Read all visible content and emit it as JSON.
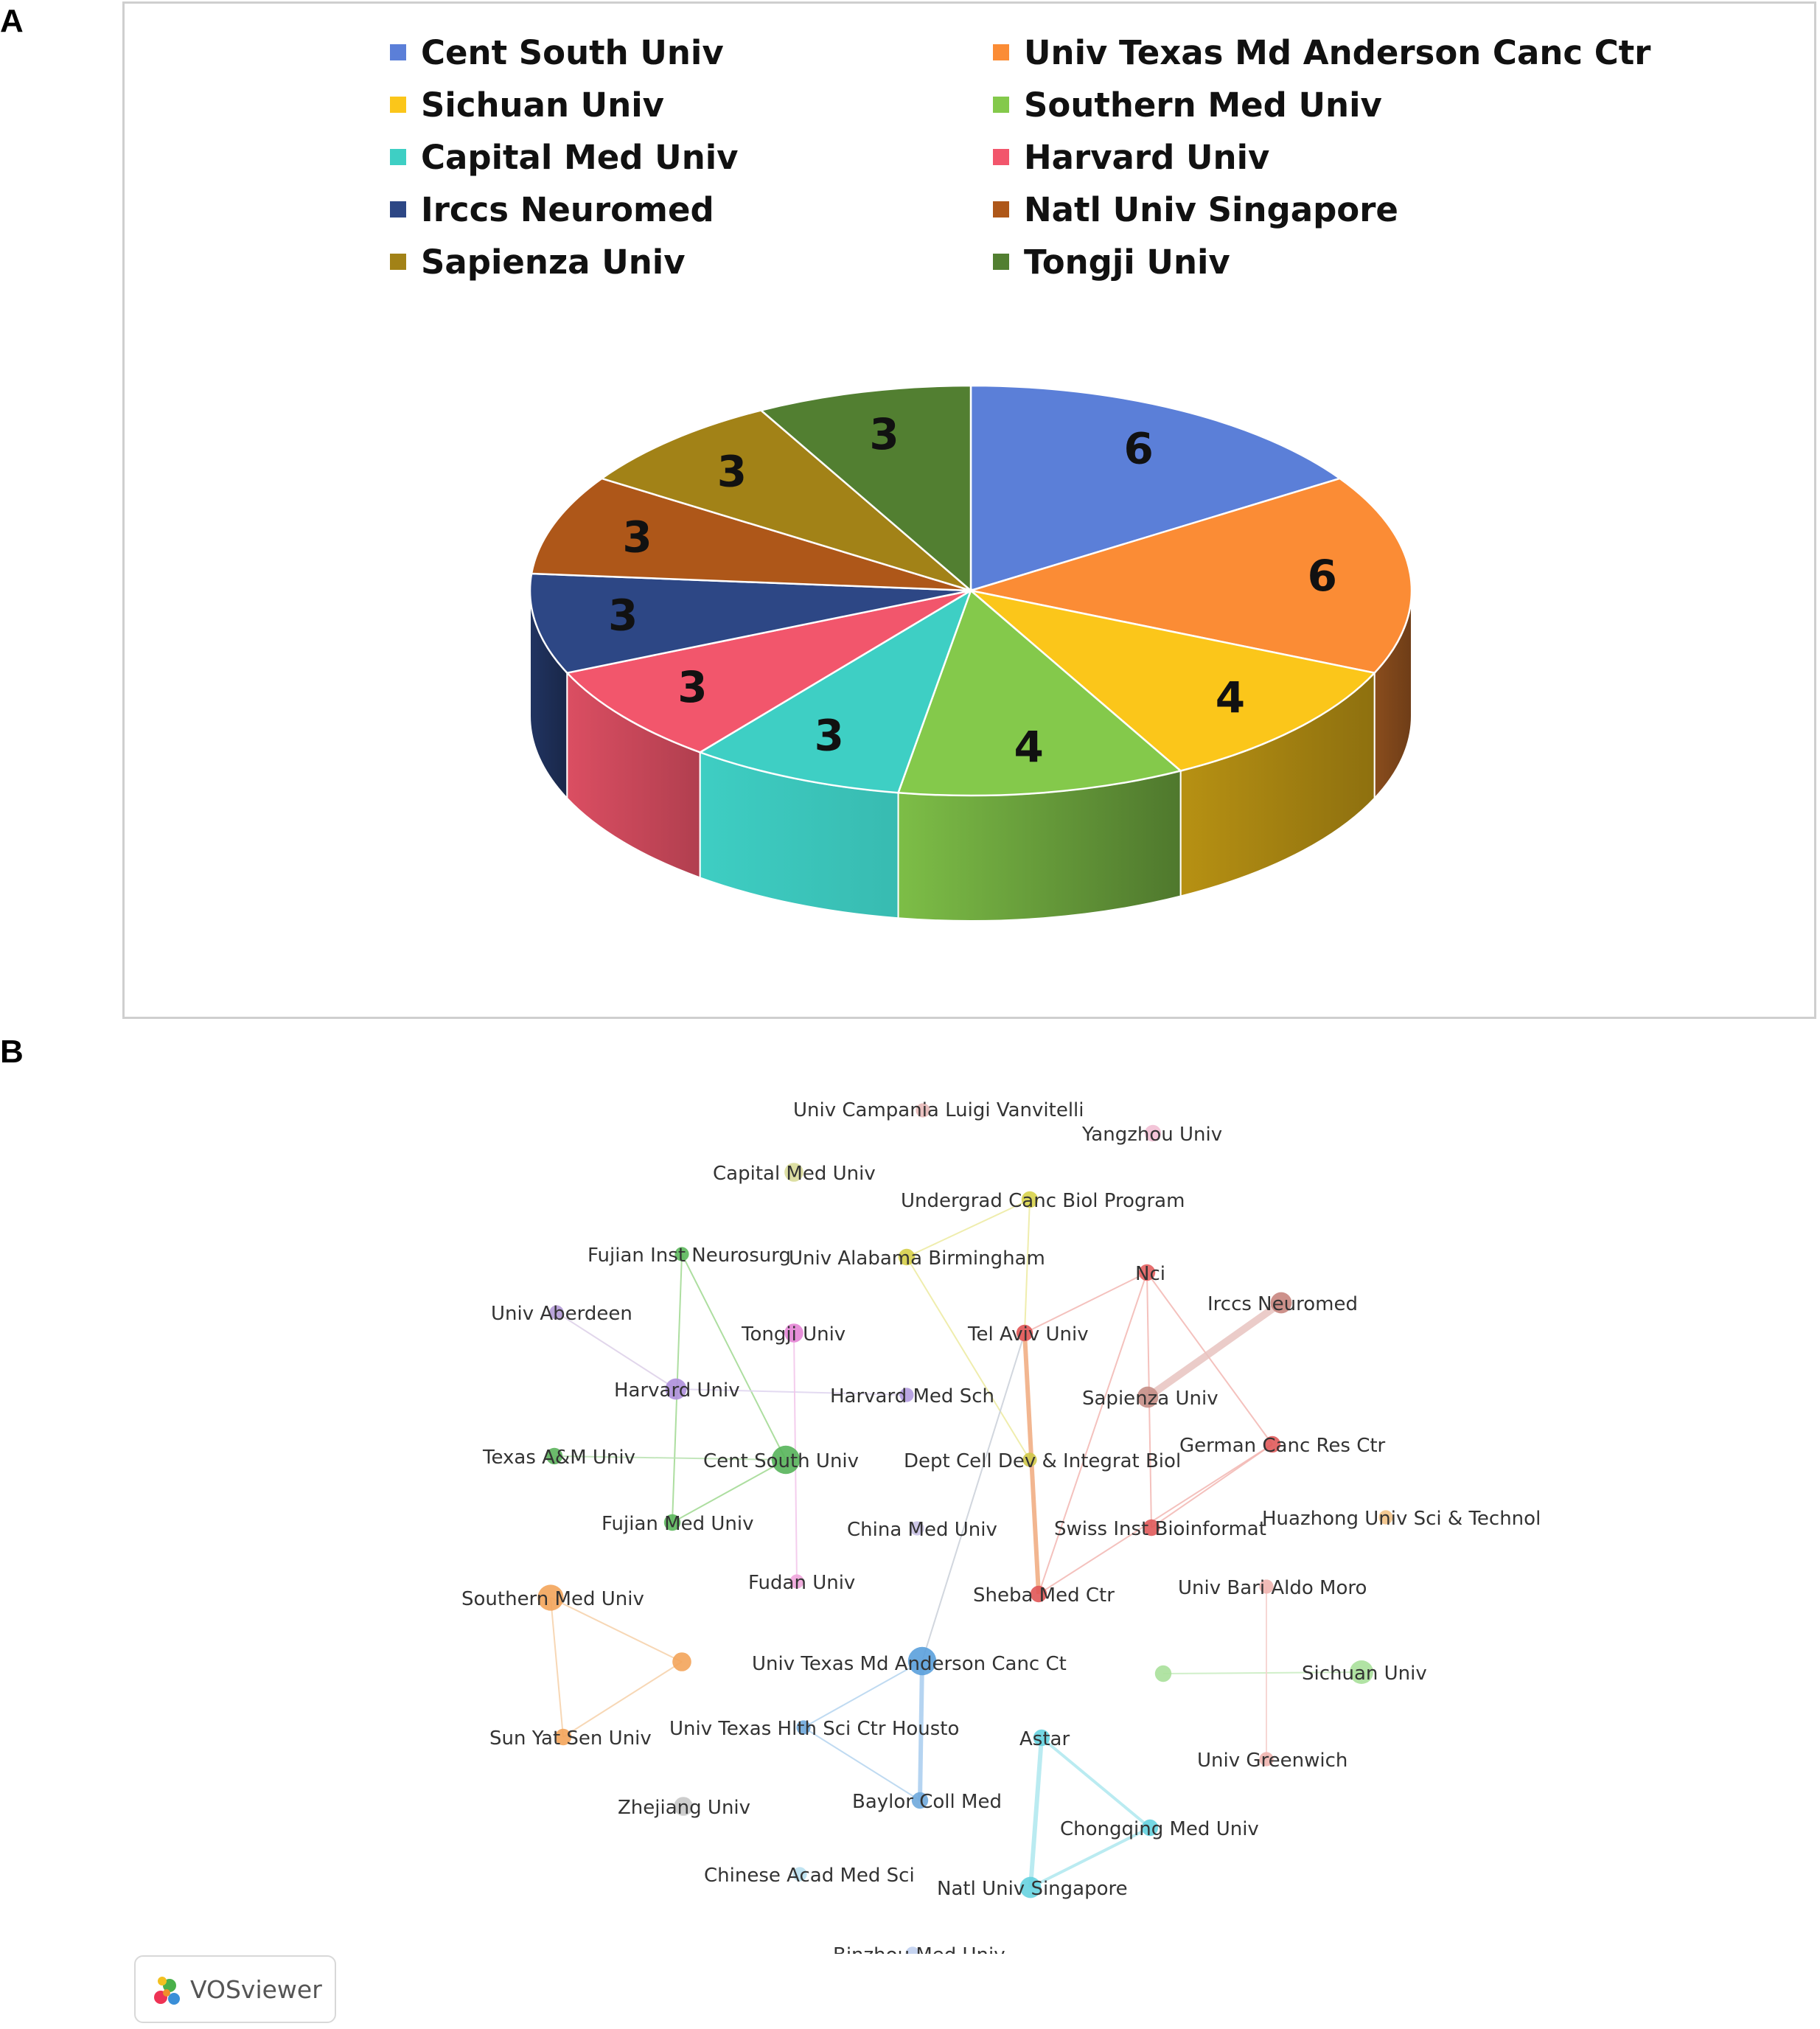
{
  "panel_labels": {
    "a": "A",
    "b": "B"
  },
  "chart_data": [
    {
      "type": "pie",
      "style": "3d",
      "legend_position": "top",
      "categories": [
        "Cent South Univ",
        "Univ Texas Md Anderson Canc Ctr",
        "Sichuan Univ",
        "Southern Med Univ",
        "Capital Med Univ",
        "Harvard Univ",
        "Irccs Neuromed",
        "Natl Univ Singapore",
        "Sapienza Univ",
        "Tongji Univ"
      ],
      "values": [
        6,
        6,
        4,
        4,
        3,
        3,
        3,
        3,
        3,
        3
      ],
      "colors": [
        "#5b7fd8",
        "#fb8c35",
        "#fbc61a",
        "#84c94b",
        "#3ecfc4",
        "#f2566c",
        "#2d4785",
        "#ae5719",
        "#a28217",
        "#527f31"
      ],
      "data_labels": [
        "6",
        "6",
        "4",
        "4",
        "3",
        "3",
        "3",
        "3",
        "3",
        "3"
      ]
    },
    {
      "type": "network",
      "nodes": [
        {
          "id": "n1",
          "label": "Univ Campania Luigi Vanvitelli",
          "color": "#e8b9b8",
          "size": 6
        },
        {
          "id": "n2",
          "label": "Yangzhou Univ",
          "color": "#f2bfd4",
          "size": 7
        },
        {
          "id": "n3",
          "label": "Capital Med Univ",
          "color": "#d9dc99",
          "size": 8
        },
        {
          "id": "n4",
          "label": "Undergrad Canc Biol Program",
          "color": "#d8d34a",
          "size": 7
        },
        {
          "id": "n5",
          "label": "Fujian Inst Neurosurg",
          "color": "#5cb85c",
          "size": 6
        },
        {
          "id": "n6",
          "label": "Univ Alabama Birmingham",
          "color": "#d6cf49",
          "size": 7
        },
        {
          "id": "n7",
          "label": "Nci",
          "color": "#e35f5f",
          "size": 7
        },
        {
          "id": "n8",
          "label": "Irccs Neuromed",
          "color": "#c8857e",
          "size": 9
        },
        {
          "id": "n9",
          "label": "Univ Aberdeen",
          "color": "#b39ad6",
          "size": 6
        },
        {
          "id": "n10",
          "label": "Tongji Univ",
          "color": "#e483d5",
          "size": 8
        },
        {
          "id": "n11",
          "label": "Tel Aviv Univ",
          "color": "#e05454",
          "size": 7
        },
        {
          "id": "n12",
          "label": "Harvard Univ",
          "color": "#ae8fdb",
          "size": 9
        },
        {
          "id": "n13",
          "label": "Harvard Med Sch",
          "color": "#b39be0",
          "size": 6
        },
        {
          "id": "n14",
          "label": "Sapienza Univ",
          "color": "#c58e86",
          "size": 9
        },
        {
          "id": "n15",
          "label": "Texas A&M Univ",
          "color": "#5cb35c",
          "size": 7
        },
        {
          "id": "n16",
          "label": "Cent South Univ",
          "color": "#56b45a",
          "size": 12
        },
        {
          "id": "n17",
          "label": "Dept Cell Dev & Integrat Biol",
          "color": "#cfc84a",
          "size": 6
        },
        {
          "id": "n18",
          "label": "German Canc Res Ctr",
          "color": "#e05a5a",
          "size": 7
        },
        {
          "id": "n19",
          "label": "Fujian Med Univ",
          "color": "#5cb85c",
          "size": 7
        },
        {
          "id": "n20",
          "label": "China Med Univ",
          "color": "#c9c1e6",
          "size": 6
        },
        {
          "id": "n21",
          "label": "Swiss Inst Bioinformat",
          "color": "#e05a5a",
          "size": 7
        },
        {
          "id": "n22",
          "label": "Huazhong Univ Sci & Technol",
          "color": "#f3c387",
          "size": 6
        },
        {
          "id": "n23",
          "label": "Southern Med Univ",
          "color": "#f3a45a",
          "size": 11
        },
        {
          "id": "n24",
          "label": "Fudan Univ",
          "color": "#f0a5dc",
          "size": 6
        },
        {
          "id": "n25",
          "label": "Sheba Med Ctr",
          "color": "#e05656",
          "size": 7
        },
        {
          "id": "n26",
          "label": "Univ Bari Aldo Moro",
          "color": "#f0b5b0",
          "size": 6
        },
        {
          "id": "n27",
          "label": "",
          "color": "#f3a45a",
          "size": 8
        },
        {
          "id": "n28",
          "label": "Univ Texas Md Anderson Canc Ct",
          "color": "#5aa0dc",
          "size": 12
        },
        {
          "id": "n29",
          "label": "",
          "color": "#a8e09a",
          "size": 7
        },
        {
          "id": "n30",
          "label": "Sichuan Univ",
          "color": "#a8e09a",
          "size": 10
        },
        {
          "id": "n31",
          "label": "Sun Yat Sen Univ",
          "color": "#f3a45a",
          "size": 7
        },
        {
          "id": "n32",
          "label": "Univ Texas Hlth Sci Ctr Housto",
          "color": "#6fa8dc",
          "size": 6
        },
        {
          "id": "n33",
          "label": "Astar",
          "color": "#66d3e0",
          "size": 7
        },
        {
          "id": "n34",
          "label": "Univ Greenwich",
          "color": "#f0b5b0",
          "size": 6
        },
        {
          "id": "n35",
          "label": "Zhejiang Univ",
          "color": "#c8c8c8",
          "size": 8
        },
        {
          "id": "n36",
          "label": "Baylor Coll Med",
          "color": "#6fa8dc",
          "size": 7
        },
        {
          "id": "n37",
          "label": "Chongqing Med Univ",
          "color": "#66d3e0",
          "size": 7
        },
        {
          "id": "n38",
          "label": "Chinese Acad Med Sci",
          "color": "#b8e0f0",
          "size": 6
        },
        {
          "id": "n39",
          "label": "Natl Univ Singapore",
          "color": "#66d3e0",
          "size": 9
        },
        {
          "id": "n40",
          "label": "Binzhou Med Univ",
          "color": "#c0cfee",
          "size": 6
        }
      ],
      "edges": [
        {
          "from": "n5",
          "to": "n16",
          "color": "#9fd88f",
          "weight": 1
        },
        {
          "from": "n5",
          "to": "n19",
          "color": "#9fd88f",
          "weight": 1
        },
        {
          "from": "n16",
          "to": "n19",
          "color": "#9fd88f",
          "weight": 1
        },
        {
          "from": "n15",
          "to": "n16",
          "color": "#b8e2b0",
          "weight": 1
        },
        {
          "from": "n9",
          "to": "n12",
          "color": "#dccfe8",
          "weight": 1
        },
        {
          "from": "n12",
          "to": "n13",
          "color": "#ded4ef",
          "weight": 1
        },
        {
          "from": "n10",
          "to": "n24",
          "color": "#f2c4ea",
          "weight": 1
        },
        {
          "from": "n4",
          "to": "n6",
          "color": "#ecea9f",
          "weight": 1
        },
        {
          "from": "n4",
          "to": "n11",
          "color": "#ecea9f",
          "weight": 1
        },
        {
          "from": "n6",
          "to": "n17",
          "color": "#ecea9f",
          "weight": 1
        },
        {
          "from": "n7",
          "to": "n11",
          "color": "#f2b6b2",
          "weight": 1
        },
        {
          "from": "n7",
          "to": "n25",
          "color": "#f2b6b2",
          "weight": 1
        },
        {
          "from": "n7",
          "to": "n18",
          "color": "#f2b6b2",
          "weight": 1
        },
        {
          "from": "n7",
          "to": "n21",
          "color": "#f2b6b2",
          "weight": 1
        },
        {
          "from": "n11",
          "to": "n25",
          "color": "#f0a97c",
          "weight": 3
        },
        {
          "from": "n11",
          "to": "n28",
          "color": "#c9cfd8",
          "weight": 1
        },
        {
          "from": "n18",
          "to": "n21",
          "color": "#f2b6b2",
          "weight": 1
        },
        {
          "from": "n18",
          "to": "n25",
          "color": "#f2b6b2",
          "weight": 1
        },
        {
          "from": "n8",
          "to": "n14",
          "color": "#e8c3bf",
          "weight": 5
        },
        {
          "from": "n23",
          "to": "n27",
          "color": "#f6d0a8",
          "weight": 1
        },
        {
          "from": "n23",
          "to": "n31",
          "color": "#f6d0a8",
          "weight": 1
        },
        {
          "from": "n27",
          "to": "n31",
          "color": "#f6d0a8",
          "weight": 1
        },
        {
          "from": "n28",
          "to": "n32",
          "color": "#b4d4ee",
          "weight": 1
        },
        {
          "from": "n28",
          "to": "n36",
          "color": "#a8ccee",
          "weight": 3
        },
        {
          "from": "n32",
          "to": "n36",
          "color": "#b4d4ee",
          "weight": 1
        },
        {
          "from": "n29",
          "to": "n30",
          "color": "#c8ecbf",
          "weight": 1
        },
        {
          "from": "n26",
          "to": "n34",
          "color": "#f6d0cc",
          "weight": 1
        },
        {
          "from": "n33",
          "to": "n37",
          "color": "#aee8ee",
          "weight": 2
        },
        {
          "from": "n33",
          "to": "n39",
          "color": "#aee8ee",
          "weight": 3
        },
        {
          "from": "n37",
          "to": "n39",
          "color": "#aee8ee",
          "weight": 2
        }
      ]
    }
  ],
  "logo": {
    "text": "VOSviewer"
  }
}
